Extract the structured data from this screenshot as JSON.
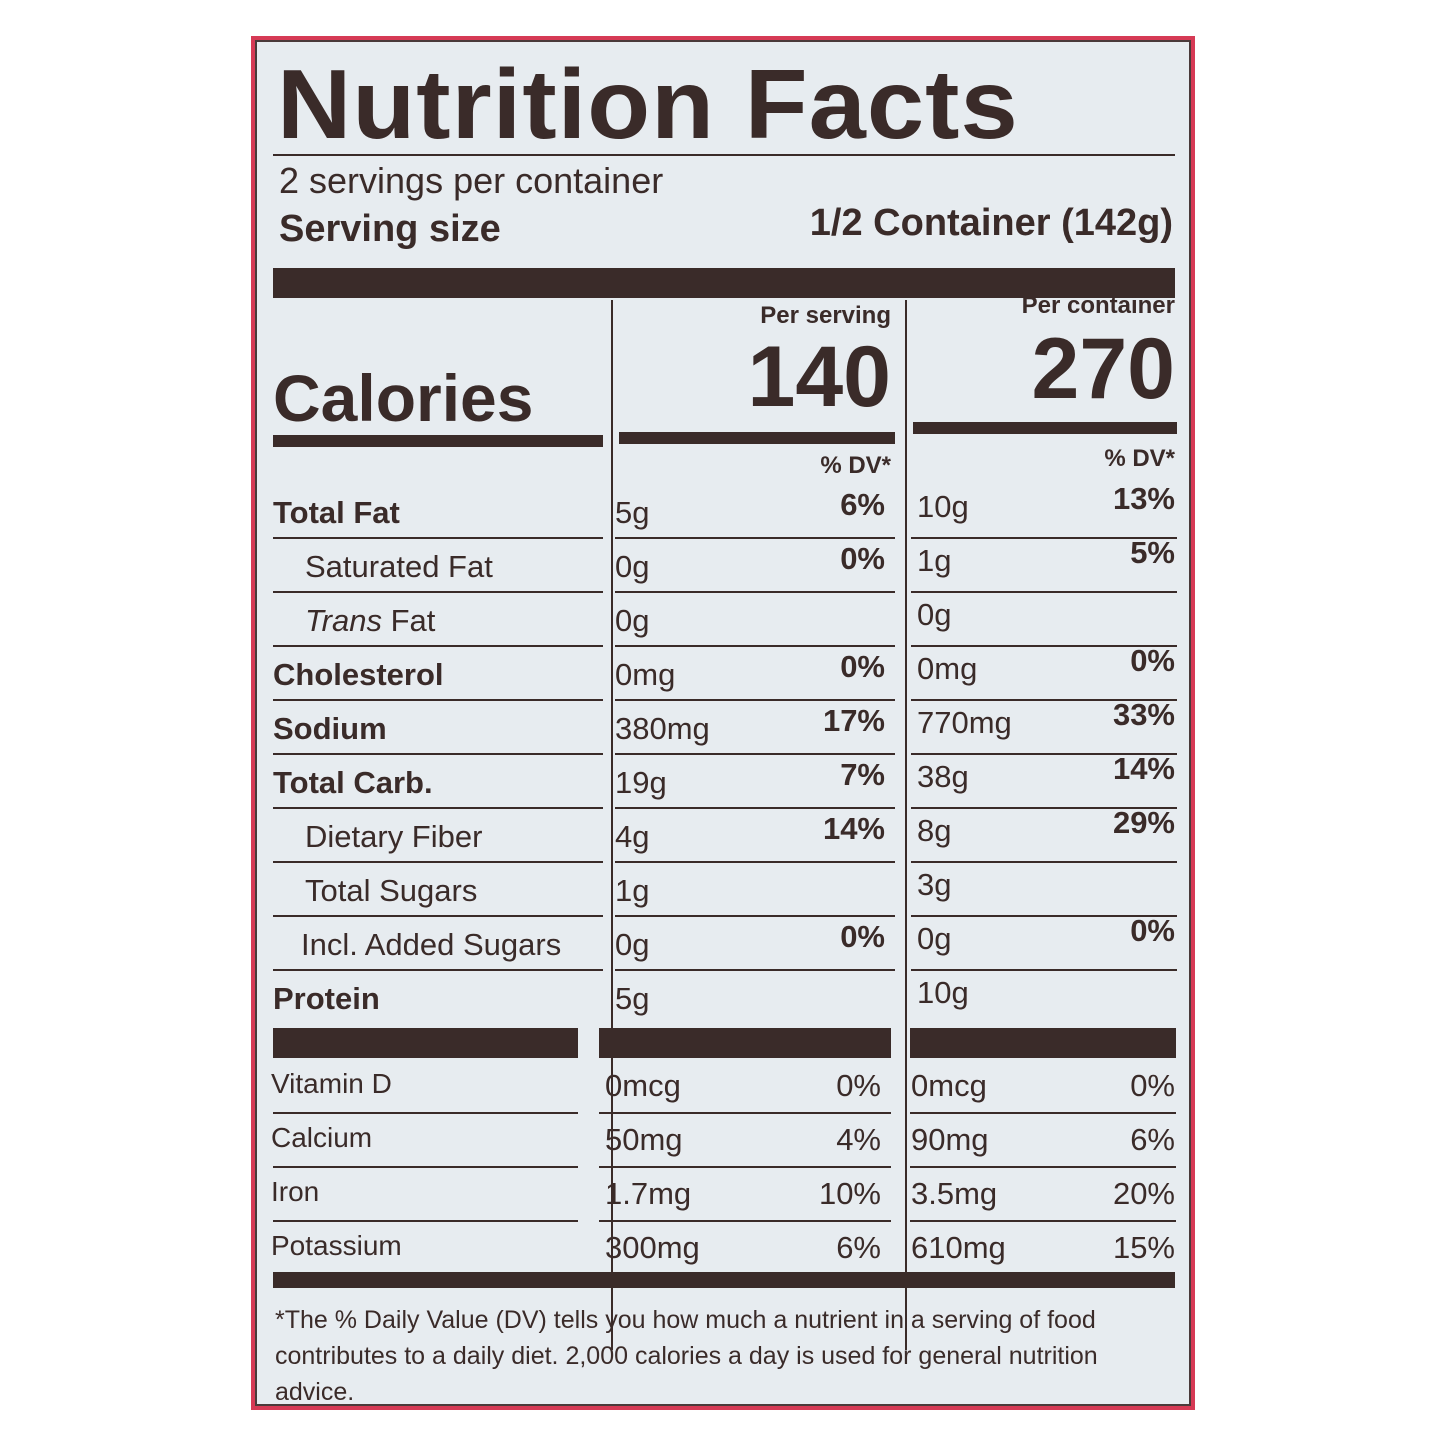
{
  "title": "Nutrition Facts",
  "servings_per_container": "2 servings per container",
  "serving_size_label": "Serving size",
  "serving_size_value": "1/2 Container (142g)",
  "calories_label": "Calories",
  "columns": [
    {
      "header": "Per serving",
      "calories": "140",
      "dv_header": "% DV*"
    },
    {
      "header": "Per container",
      "calories": "270",
      "dv_header": "% DV*"
    }
  ],
  "colors": {
    "border": "#d63a55",
    "background": "#e7ecf0",
    "ink": "#3a2b29"
  },
  "nutrients": [
    {
      "name": "Total Fat",
      "style": "bold",
      "serving": "5g",
      "serving_dv": "6%",
      "container": "10g",
      "container_dv": "13%"
    },
    {
      "name": "Saturated Fat",
      "style": "indent",
      "serving": "0g",
      "serving_dv": "0%",
      "container": "1g",
      "container_dv": "5%"
    },
    {
      "name_italic": "Trans",
      "name": " Fat",
      "style": "indent",
      "serving": "0g",
      "serving_dv": "",
      "container": "0g",
      "container_dv": ""
    },
    {
      "name": "Cholesterol",
      "style": "bold",
      "serving": "0mg",
      "serving_dv": "0%",
      "container": "0mg",
      "container_dv": "0%"
    },
    {
      "name": "Sodium",
      "style": "bold",
      "serving": "380mg",
      "serving_dv": "17%",
      "container": "770mg",
      "container_dv": "33%"
    },
    {
      "name": "Total Carb.",
      "style": "bold",
      "serving": "19g",
      "serving_dv": "7%",
      "container": "38g",
      "container_dv": "14%"
    },
    {
      "name": "Dietary Fiber",
      "style": "indent",
      "serving": "4g",
      "serving_dv": "14%",
      "container": "8g",
      "container_dv": "29%"
    },
    {
      "name": "Total Sugars",
      "style": "indent",
      "serving": "1g",
      "serving_dv": "",
      "container": "3g",
      "container_dv": ""
    },
    {
      "name": "Incl. Added Sugars",
      "style": "indent2",
      "serving": "0g",
      "serving_dv": "0%",
      "container": "0g",
      "container_dv": "0%"
    },
    {
      "name": "Protein",
      "style": "bold",
      "serving": "5g",
      "serving_dv": "",
      "container": "10g",
      "container_dv": ""
    }
  ],
  "vitamins": [
    {
      "name": "Vitamin D",
      "serving": "0mcg",
      "serving_dv": "0%",
      "container": "0mcg",
      "container_dv": "0%"
    },
    {
      "name": "Calcium",
      "serving": "50mg",
      "serving_dv": "4%",
      "container": "90mg",
      "container_dv": "6%"
    },
    {
      "name": "Iron",
      "serving": "1.7mg",
      "serving_dv": "10%",
      "container": "3.5mg",
      "container_dv": "20%"
    },
    {
      "name": "Potassium",
      "serving": "300mg",
      "serving_dv": "6%",
      "container": "610mg",
      "container_dv": "15%"
    }
  ],
  "footnote": "*The % Daily Value (DV) tells you how much a nutrient in a serving of food contributes to a daily diet. 2,000 calories a day is used for general nutrition advice."
}
